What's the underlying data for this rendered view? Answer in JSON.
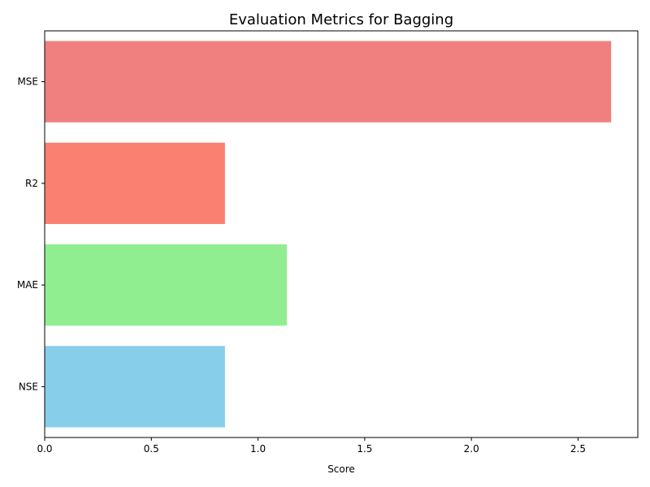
{
  "chart_data": {
    "type": "bar",
    "orientation": "horizontal",
    "title": "Evaluation Metrics for Bagging",
    "xlabel": "Score",
    "ylabel": "",
    "categories": [
      "NSE",
      "MAE",
      "R2",
      "MSE"
    ],
    "values": [
      0.845,
      1.135,
      0.845,
      2.655
    ],
    "colors": [
      "#87ceeb",
      "#90ee90",
      "#fa8072",
      "#f08080"
    ],
    "xlim": [
      0,
      2.78
    ],
    "xticks": [
      0.0,
      0.5,
      1.0,
      1.5,
      2.0,
      2.5
    ],
    "xtick_labels": [
      "0.0",
      "0.5",
      "1.0",
      "1.5",
      "2.0",
      "2.5"
    ],
    "grid": false,
    "legend": "none"
  }
}
